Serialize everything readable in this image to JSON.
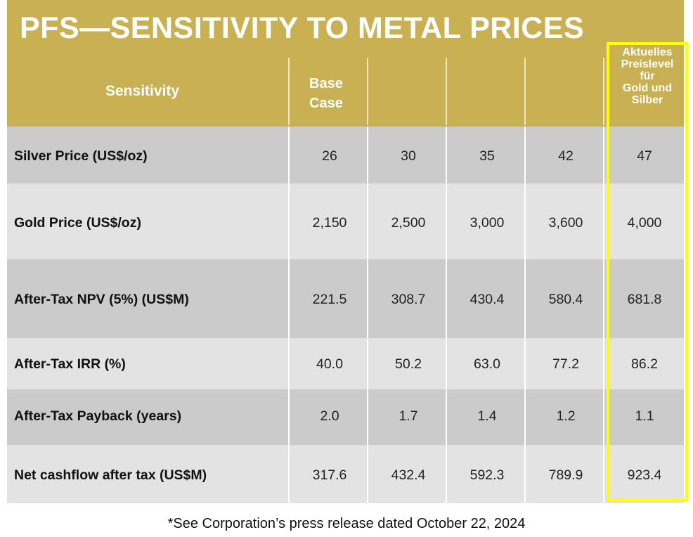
{
  "title": "PFS—SENSITIVITY TO METAL PRICES",
  "header": {
    "sensitivity": "Sensitivity",
    "base_case": "Base\nCase",
    "current_level": "Aktuelles\nPreislevel\nfür\nGold und\nSilber"
  },
  "rows": [
    {
      "label": "Silver Price (US$/oz)",
      "values": [
        "26",
        "30",
        "35",
        "42",
        "47"
      ]
    },
    {
      "label": "Gold Price (US$/oz)",
      "values": [
        "2,150",
        "2,500",
        "3,000",
        "3,600",
        "4,000"
      ]
    },
    {
      "label": "After-Tax NPV (5%) (US$M)",
      "values": [
        "221.5",
        "308.7",
        "430.4",
        "580.4",
        "681.8"
      ]
    },
    {
      "label": "After-Tax IRR (%)",
      "values": [
        "40.0",
        "50.2",
        "63.0",
        "77.2",
        "86.2"
      ]
    },
    {
      "label": "After-Tax Payback (years)",
      "values": [
        "2.0",
        "1.7",
        "1.4",
        "1.2",
        "1.1"
      ]
    },
    {
      "label": "Net cashflow after tax (US$M)",
      "values": [
        "317.6",
        "432.4",
        "592.3",
        "789.9",
        "923.4"
      ]
    }
  ],
  "footnote": "*See Corporation’s press release dated October 22, 2024",
  "colors": {
    "header_gold": "#c9b052",
    "highlight": "#ffff00",
    "row_dark": "#cbcbcb",
    "row_light": "#e3e3e3"
  }
}
